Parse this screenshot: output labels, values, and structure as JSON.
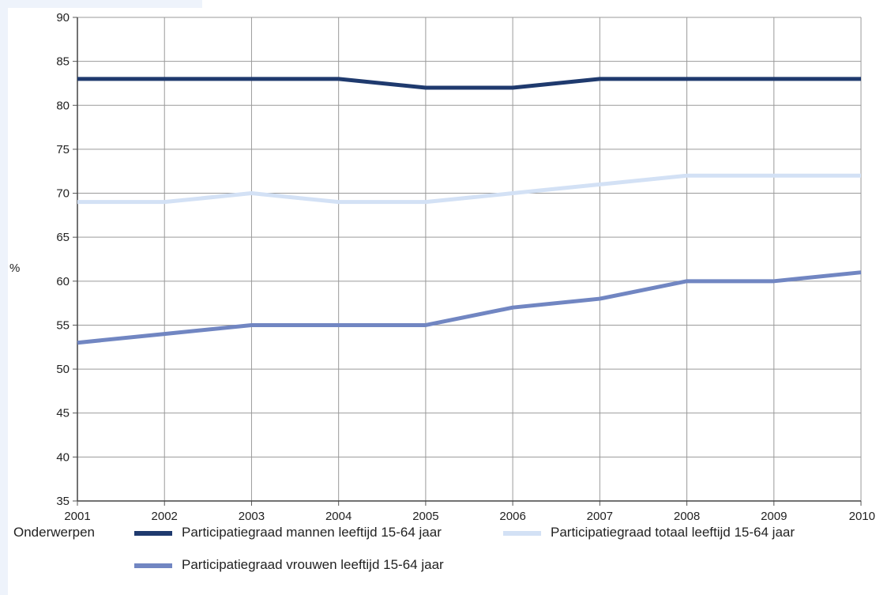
{
  "chart_data": {
    "type": "line",
    "x": [
      2001,
      2002,
      2003,
      2004,
      2005,
      2006,
      2007,
      2008,
      2009,
      2010
    ],
    "ylim": [
      35,
      90
    ],
    "yticks": [
      35,
      40,
      45,
      50,
      55,
      60,
      65,
      70,
      75,
      80,
      85,
      90
    ],
    "ylabel": "%",
    "xlabel": "",
    "grid": true,
    "legend_title": "Onderwerpen",
    "legend_position": "bottom",
    "series": [
      {
        "name": "Participatiegraad mannen leeftijd 15-64 jaar",
        "color": "#1f3a6e",
        "values": [
          83,
          83,
          83,
          83,
          82,
          82,
          83,
          83,
          83,
          83
        ]
      },
      {
        "name": "Participatiegraad totaal leeftijd 15-64 jaar",
        "color": "#d3e1f5",
        "values": [
          69,
          69,
          70,
          69,
          69,
          70,
          71,
          72,
          72,
          72
        ]
      },
      {
        "name": "Participatiegraad vrouwen leeftijd 15-64 jaar",
        "color": "#7186c2",
        "values": [
          53,
          54,
          55,
          55,
          55,
          57,
          58,
          60,
          60,
          61
        ]
      }
    ]
  }
}
